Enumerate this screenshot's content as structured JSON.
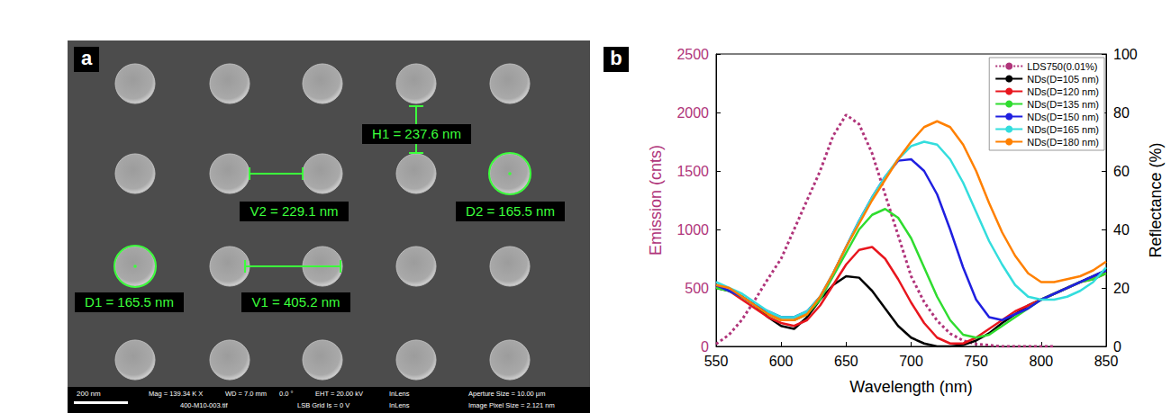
{
  "panels": [
    "a",
    "b"
  ],
  "sem_image": {
    "annotations": [
      "H1 = 237.6 nm",
      "V2 = 229.1 nm",
      "D2 = 165.5 nm",
      "D1 = 165.5 nm",
      "V1 = 405.2 nm"
    ],
    "scale_bar": "200 nm",
    "info": [
      "Mag = 139.34 K X",
      "WD = 7.0 mm",
      "0.0 °",
      "EHT = 20.00 kV",
      "InLens",
      "Aperture Size = 10.00 µm",
      "400-M10-003.tif",
      "LSB Grid Is = 0 V",
      "InLens",
      "Image Pixel Size = 2.121 nm"
    ]
  },
  "chart_data": {
    "type": "line",
    "xlabel": "Wavelength (nm)",
    "ylabel": "Emission (cnts)",
    "y2label": "Reflectance (%)",
    "x": [
      550,
      560,
      570,
      580,
      590,
      600,
      610,
      620,
      630,
      640,
      650,
      660,
      670,
      680,
      690,
      700,
      710,
      720,
      730,
      740,
      750,
      760,
      770,
      780,
      790,
      800,
      810,
      820,
      830,
      840,
      850
    ],
    "xlim": [
      550,
      850
    ],
    "xticks": [
      550,
      600,
      650,
      700,
      750,
      800,
      850
    ],
    "ylim": [
      0,
      2500
    ],
    "yticks": [
      0,
      500,
      1000,
      1500,
      2000,
      2500
    ],
    "y2lim": [
      0,
      100
    ],
    "y2ticks": [
      0,
      20,
      40,
      60,
      80,
      100
    ],
    "grid": false,
    "legend": "top-right",
    "series": [
      {
        "name": "LDS750(0.01%)",
        "color": "#b0347a",
        "line_style": "dotted",
        "values": [
          20,
          100,
          230,
          400,
          580,
          750,
          1000,
          1250,
          1500,
          1800,
          1980,
          1900,
          1650,
          1300,
          950,
          600,
          380,
          220,
          110,
          50,
          20,
          10,
          0,
          0,
          0,
          0,
          0,
          null,
          null,
          null,
          null
        ]
      },
      {
        "name": "NDs(D=105 nm)",
        "color": "#000000",
        "line_style": "solid",
        "axis": "y2",
        "values": [
          20,
          19,
          17,
          14,
          10,
          7,
          6,
          10,
          16,
          21,
          24,
          23.5,
          19,
          13,
          7,
          3,
          1,
          0,
          0,
          0.5,
          2,
          4.5,
          8,
          11,
          14,
          16,
          18,
          20,
          22,
          24,
          26
        ]
      },
      {
        "name": "NDs(D=120 nm)",
        "color": "#e8161e",
        "line_style": "solid",
        "axis": "y2",
        "values": [
          21,
          19,
          16,
          13,
          10,
          8,
          7,
          9,
          14,
          21,
          28,
          33,
          34,
          30,
          23,
          15,
          8,
          3,
          1,
          1,
          3,
          6,
          9,
          12,
          14,
          16,
          18,
          20,
          22,
          23,
          25
        ]
      },
      {
        "name": "NDs(D=135 nm)",
        "color": "#2fdc2f",
        "line_style": "solid",
        "axis": "y2",
        "values": [
          20,
          19,
          17,
          14,
          11,
          9,
          9,
          11,
          16,
          24,
          32,
          40,
          45,
          47,
          44,
          37,
          27,
          17,
          9,
          4,
          3,
          4,
          7,
          10,
          13,
          16,
          18,
          20,
          22,
          23,
          25
        ]
      },
      {
        "name": "NDs(D=150 nm)",
        "color": "#1f1fe0",
        "line_style": "solid",
        "axis": "y2",
        "values": [
          21,
          19,
          17,
          14,
          12,
          10,
          10,
          12,
          17,
          25,
          34,
          43,
          51,
          58,
          63.5,
          64,
          60,
          52,
          40,
          27,
          16,
          10,
          9,
          11,
          13,
          16,
          18,
          20,
          22,
          24,
          26
        ]
      },
      {
        "name": "NDs(D=165 nm)",
        "color": "#33dddd",
        "line_style": "solid",
        "axis": "y2",
        "values": [
          22,
          20,
          18,
          15,
          12,
          10,
          10,
          12,
          17,
          25,
          34,
          43,
          51,
          58,
          64,
          68.5,
          70,
          69,
          64,
          56,
          46,
          36,
          28,
          21,
          17,
          16,
          16,
          17,
          19,
          22,
          27
        ]
      },
      {
        "name": "NDs(D=180 nm)",
        "color": "#ff8000",
        "line_style": "solid",
        "axis": "y2",
        "values": [
          21,
          20,
          17,
          14,
          11,
          9,
          9,
          11,
          17,
          25,
          34,
          42,
          50,
          57,
          64,
          70,
          75,
          77,
          75,
          69,
          60,
          49,
          39,
          31,
          25,
          22,
          22,
          23,
          24,
          26,
          29
        ]
      }
    ]
  }
}
